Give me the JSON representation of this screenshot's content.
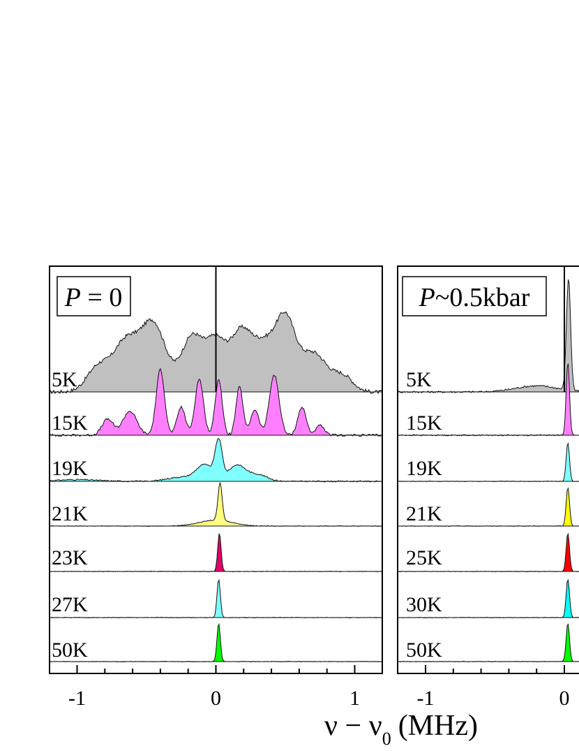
{
  "figure": {
    "xlabel_main": "ν − ν",
    "xlabel_sub": "0",
    "xlabel_unit": "(MHz)"
  },
  "chart_data": [
    {
      "type": "area",
      "panel_label": "P = 0",
      "panel_label_italic": "P",
      "panel_label_rest": " = 0",
      "xlim": [
        -1.2,
        1.2
      ],
      "x_ticks": [
        -1,
        0,
        1
      ],
      "x_tick_labels": [
        "-1",
        "0",
        "1"
      ],
      "center_line_x": 0,
      "series": [
        {
          "label": "5K",
          "color": "#c0c0c0",
          "components": [
            {
              "c": -0.45,
              "w": 0.09,
              "a": 0.55
            },
            {
              "c": -0.65,
              "w": 0.09,
              "a": 0.4
            },
            {
              "c": -0.85,
              "w": 0.08,
              "a": 0.2
            },
            {
              "c": -0.17,
              "w": 0.08,
              "a": 0.45
            },
            {
              "c": 0.0,
              "w": 0.07,
              "a": 0.38
            },
            {
              "c": 0.18,
              "w": 0.08,
              "a": 0.48
            },
            {
              "c": 0.35,
              "w": 0.08,
              "a": 0.35
            },
            {
              "c": 0.5,
              "w": 0.07,
              "a": 0.55
            },
            {
              "c": 0.7,
              "w": 0.1,
              "a": 0.32
            },
            {
              "c": 0.92,
              "w": 0.07,
              "a": 0.12
            }
          ]
        },
        {
          "label": "15K",
          "color": "#ff80ff",
          "components": [
            {
              "c": -0.4,
              "w": 0.03,
              "a": 0.82
            },
            {
              "c": -0.12,
              "w": 0.03,
              "a": 0.7
            },
            {
              "c": 0.02,
              "w": 0.025,
              "a": 0.7
            },
            {
              "c": 0.17,
              "w": 0.025,
              "a": 0.6
            },
            {
              "c": 0.42,
              "w": 0.035,
              "a": 0.75
            },
            {
              "c": -0.62,
              "w": 0.05,
              "a": 0.3
            },
            {
              "c": -0.78,
              "w": 0.04,
              "a": 0.2
            },
            {
              "c": 0.62,
              "w": 0.03,
              "a": 0.35
            },
            {
              "c": 0.28,
              "w": 0.03,
              "a": 0.32
            },
            {
              "c": -0.25,
              "w": 0.03,
              "a": 0.35
            },
            {
              "c": 0.75,
              "w": 0.03,
              "a": 0.12
            }
          ]
        },
        {
          "label": "19K",
          "color": "#80ffff",
          "components": [
            {
              "c": 0.02,
              "w": 0.025,
              "a": 0.9
            },
            {
              "c": -0.08,
              "w": 0.06,
              "a": 0.38
            },
            {
              "c": 0.15,
              "w": 0.06,
              "a": 0.38
            },
            {
              "c": 0.3,
              "w": 0.07,
              "a": 0.16
            },
            {
              "c": -0.25,
              "w": 0.1,
              "a": 0.1
            },
            {
              "c": -1.0,
              "w": 0.15,
              "a": 0.04
            }
          ]
        },
        {
          "label": "21K",
          "color": "#ffff80",
          "components": [
            {
              "c": 0.03,
              "w": 0.015,
              "a": 0.9
            },
            {
              "c": 0.0,
              "w": 0.12,
              "a": 0.14
            }
          ]
        },
        {
          "label": "23K",
          "color": "#e0006a",
          "components": [
            {
              "c": 0.025,
              "w": 0.012,
              "a": 0.92
            }
          ]
        },
        {
          "label": "27K",
          "color": "#80ffff",
          "components": [
            {
              "c": 0.02,
              "w": 0.012,
              "a": 0.92
            }
          ]
        },
        {
          "label": "50K",
          "color": "#00ff00",
          "components": [
            {
              "c": 0.02,
              "w": 0.012,
              "a": 0.92
            }
          ]
        }
      ]
    },
    {
      "type": "area",
      "panel_label": "P~0.5kbar",
      "panel_label_italic": "P",
      "panel_label_rest": "~0.5kbar",
      "xlim": [
        -1.2,
        1.2
      ],
      "x_ticks": [
        -1,
        0
      ],
      "x_tick_labels": [
        "-1",
        "0"
      ],
      "center_line_x": 0,
      "series": [
        {
          "label": "5K",
          "color": "#c0c0c0",
          "components": [
            {
              "c": 0.03,
              "w": 0.015,
              "a": 0.92
            },
            {
              "c": -0.2,
              "w": 0.15,
              "a": 0.05
            }
          ]
        },
        {
          "label": "15K",
          "color": "#ff80ff",
          "components": [
            {
              "c": 0.025,
              "w": 0.012,
              "a": 0.92
            }
          ]
        },
        {
          "label": "19K",
          "color": "#80ffff",
          "components": [
            {
              "c": 0.025,
              "w": 0.012,
              "a": 0.92
            }
          ]
        },
        {
          "label": "21K",
          "color": "#ffff00",
          "components": [
            {
              "c": 0.025,
              "w": 0.012,
              "a": 0.92
            }
          ]
        },
        {
          "label": "25K",
          "color": "#ff0000",
          "components": [
            {
              "c": 0.025,
              "w": 0.012,
              "a": 0.92
            }
          ]
        },
        {
          "label": "30K",
          "color": "#00ffff",
          "components": [
            {
              "c": 0.025,
              "w": 0.012,
              "a": 0.92
            }
          ]
        },
        {
          "label": "50K",
          "color": "#00ff00",
          "components": [
            {
              "c": 0.025,
              "w": 0.012,
              "a": 0.92
            }
          ]
        }
      ]
    }
  ]
}
